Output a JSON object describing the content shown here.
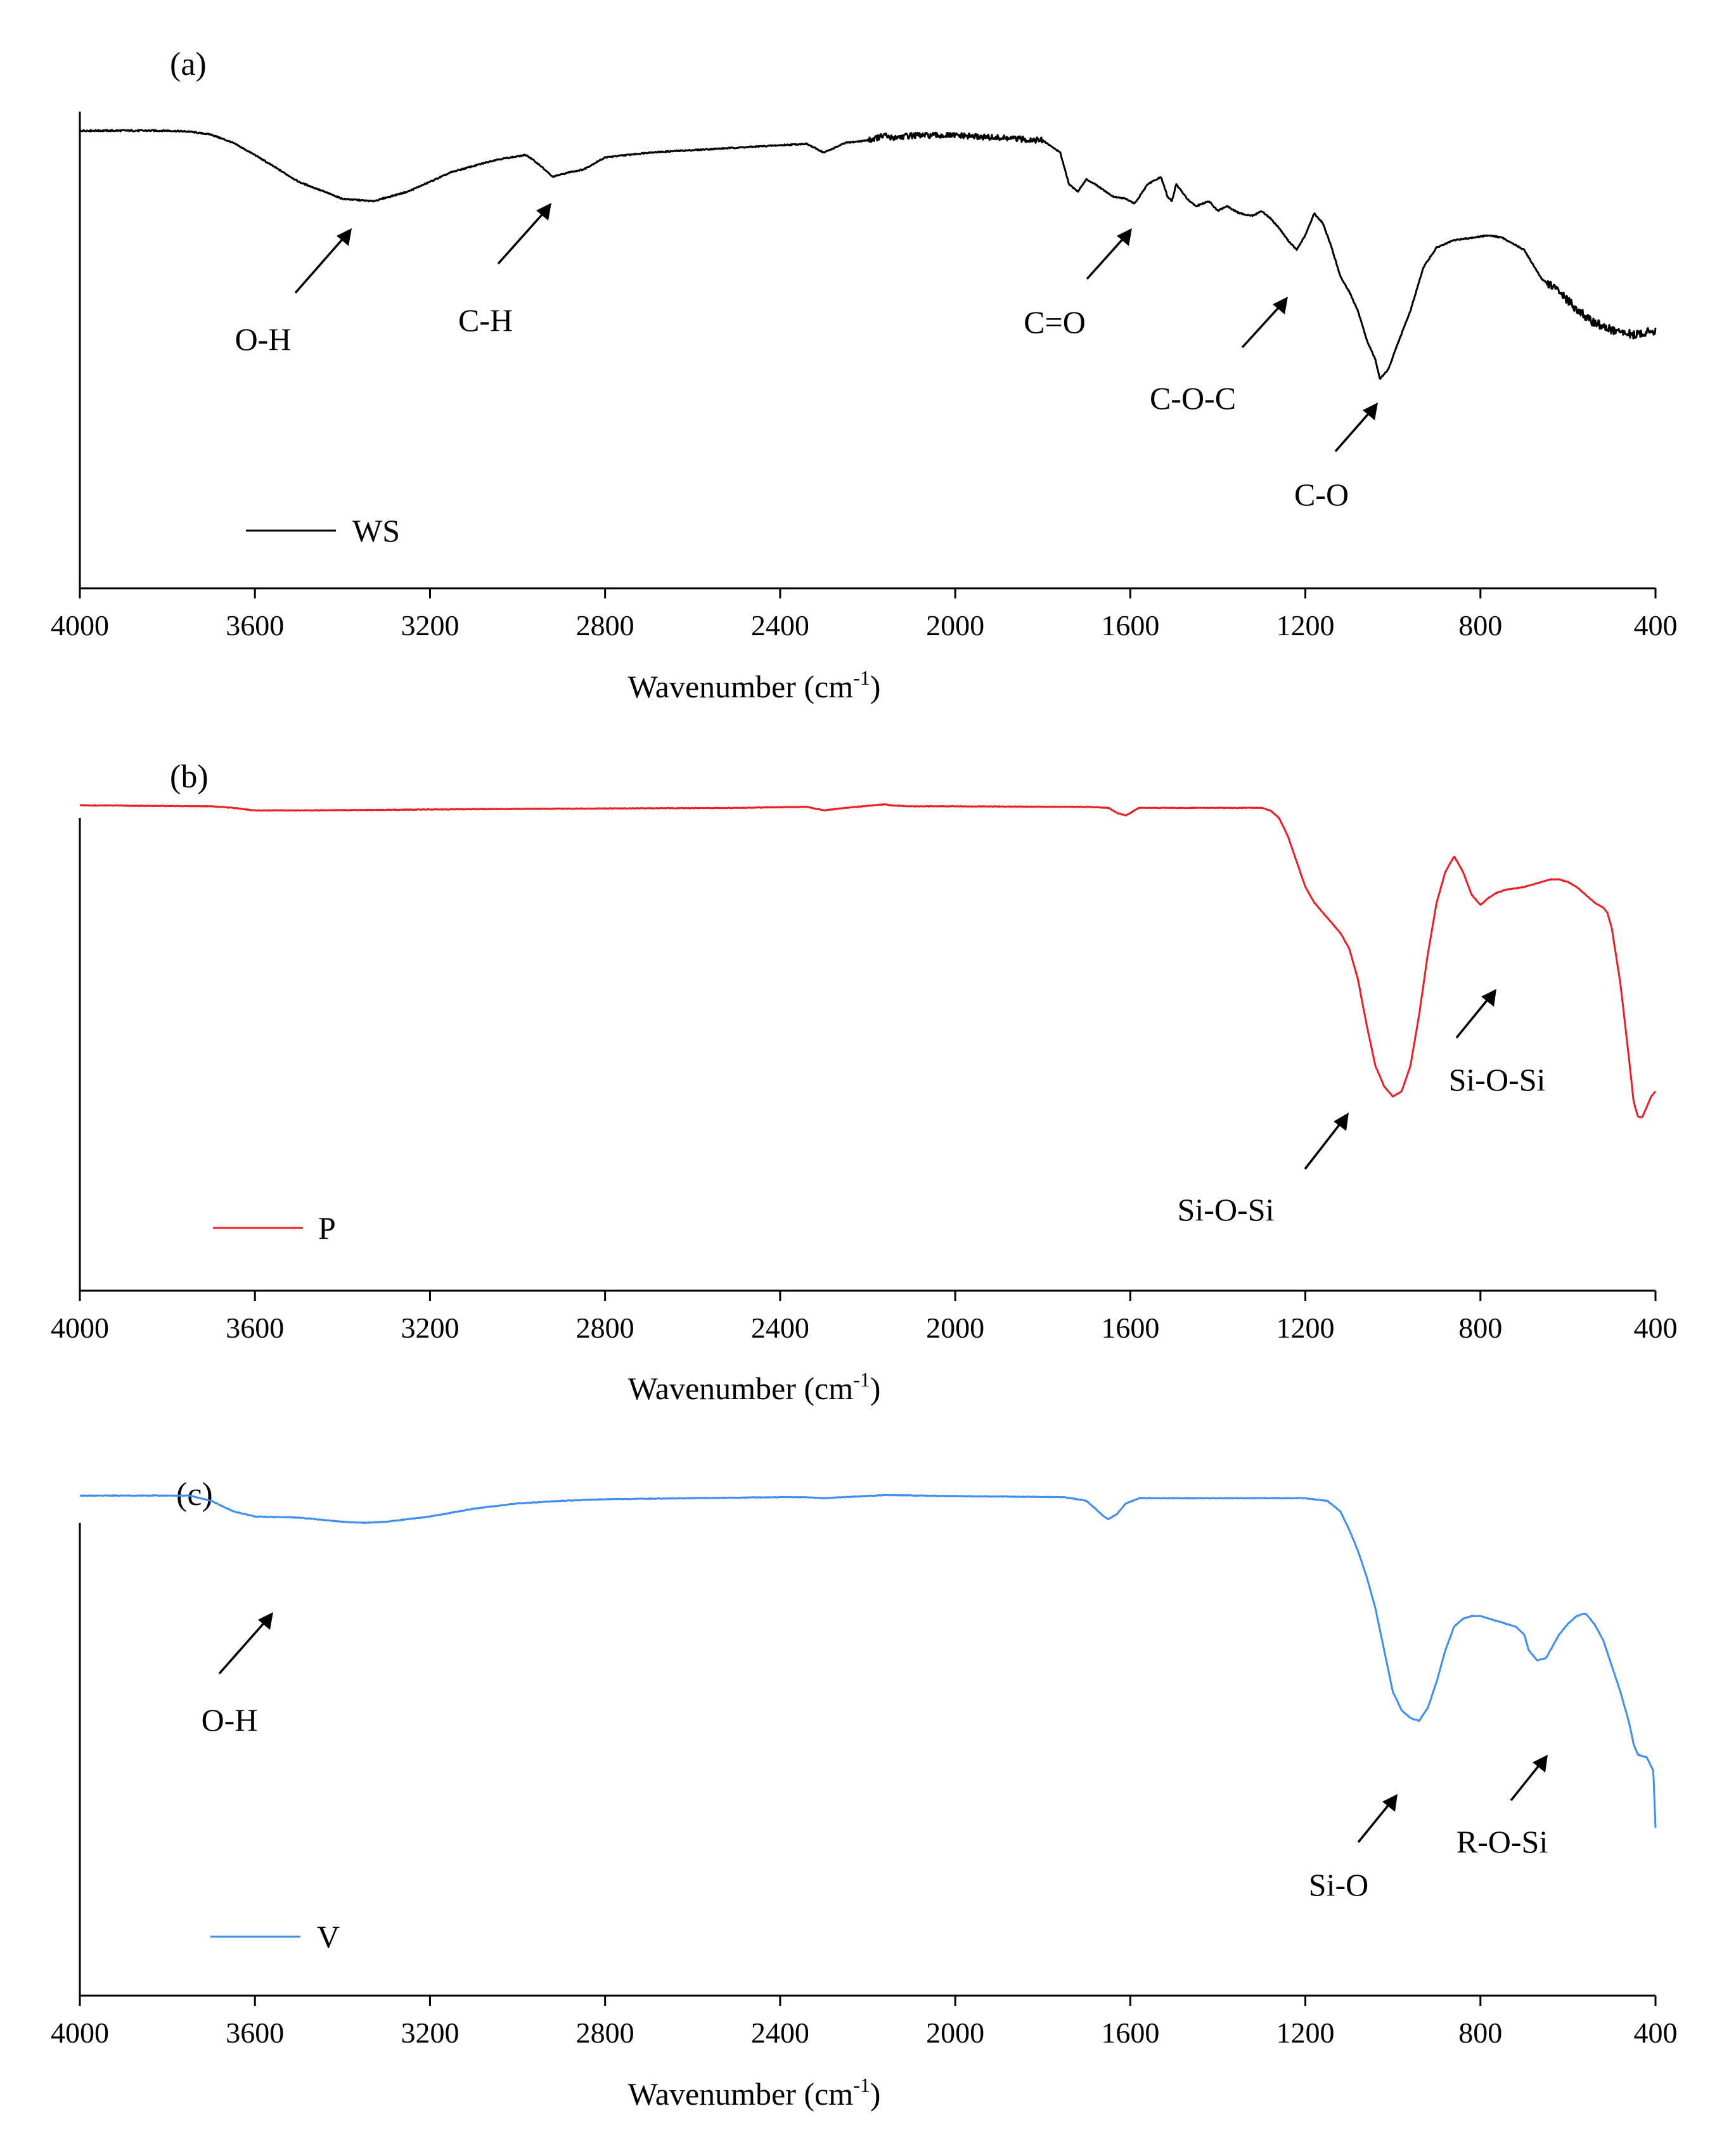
{
  "chart_data": [
    {
      "type": "line",
      "panel_label": "(a)",
      "xlabel": "Wavenumber (cm",
      "xlabel_sup": "-1",
      "xlabel_end": ")",
      "xlim": [
        4000,
        400
      ],
      "x_ticks": [
        "4000",
        "3600",
        "3200",
        "2800",
        "2400",
        "2000",
        "1600",
        "1200",
        "800",
        "400"
      ],
      "ylabel": "",
      "y_ticks": [],
      "legend": "bottom-left",
      "series": [
        {
          "name": "WS",
          "color": "#000000",
          "noise": true,
          "x": [
            4000,
            3900,
            3800,
            3750,
            3700,
            3650,
            3600,
            3500,
            3400,
            3330,
            3250,
            3150,
            3050,
            2980,
            2950,
            2920,
            2880,
            2850,
            2800,
            2700,
            2600,
            2500,
            2400,
            2340,
            2300,
            2250,
            2200,
            2160,
            2150,
            2100,
            2000,
            1900,
            1800,
            1760,
            1740,
            1720,
            1700,
            1680,
            1640,
            1610,
            1590,
            1560,
            1530,
            1515,
            1505,
            1495,
            1470,
            1450,
            1420,
            1400,
            1380,
            1350,
            1320,
            1300,
            1280,
            1260,
            1240,
            1220,
            1200,
            1180,
            1160,
            1140,
            1120,
            1100,
            1080,
            1060,
            1040,
            1030,
            1010,
            990,
            960,
            930,
            900,
            860,
            820,
            780,
            750,
            700,
            660,
            620,
            600,
            550,
            500,
            450,
            400
          ],
          "y": [
            94.0,
            94.0,
            94.0,
            93.8,
            93.2,
            91.5,
            89.0,
            83.5,
            80.0,
            79.5,
            81.5,
            85.5,
            88.0,
            89.0,
            87.0,
            84.5,
            85.5,
            86.0,
            88.5,
            89.5,
            90.0,
            90.5,
            91.0,
            91.3,
            89.5,
            91.5,
            92.0,
            93.0,
            92.5,
            93.0,
            93.0,
            92.5,
            92.0,
            89.5,
            83.0,
            81.5,
            84.0,
            83.0,
            80.5,
            80.0,
            79.0,
            83.0,
            84.5,
            80.5,
            79.5,
            83.0,
            80.0,
            78.5,
            79.5,
            77.5,
            78.5,
            77.0,
            76.5,
            77.5,
            76.0,
            74.0,
            71.5,
            69.5,
            72.5,
            77.0,
            75.0,
            70.0,
            64.0,
            61.0,
            57.0,
            51.0,
            47.0,
            43.0,
            45.0,
            50.0,
            57.0,
            66.0,
            70.0,
            71.5,
            72.0,
            72.5,
            72.0,
            69.5,
            63.5,
            61.0,
            59.0,
            55.0,
            53.0,
            52.0,
            53.0
          ]
        }
      ],
      "annotations": [
        {
          "label": "O-H",
          "x_wavenumber": 3400
        },
        {
          "label": "C-H",
          "x_wavenumber": 2920
        },
        {
          "label": "C=O",
          "x_wavenumber": 1610
        },
        {
          "label": "C-O-C",
          "x_wavenumber": 1230
        },
        {
          "label": "C-O",
          "x_wavenumber": 1030
        }
      ]
    },
    {
      "type": "line",
      "panel_label": "(b)",
      "xlabel": "Wavenumber (cm",
      "xlabel_sup": "-1",
      "xlabel_end": ")",
      "xlim": [
        4000,
        400
      ],
      "x_ticks": [
        "4000",
        "3600",
        "3200",
        "2800",
        "2400",
        "2000",
        "1600",
        "1200",
        "800",
        "400"
      ],
      "ylabel": "",
      "y_ticks": [],
      "legend": "bottom-left",
      "series": [
        {
          "name": "P",
          "color": "#ee1c24",
          "noise": false,
          "x": [
            4000,
            3700,
            3650,
            3600,
            3550,
            3500,
            3000,
            2500,
            2340,
            2300,
            2250,
            2160,
            2150,
            2100,
            2000,
            1700,
            1650,
            1630,
            1610,
            1580,
            1300,
            1280,
            1260,
            1240,
            1220,
            1200,
            1180,
            1160,
            1140,
            1120,
            1100,
            1080,
            1060,
            1040,
            1020,
            1000,
            980,
            960,
            940,
            920,
            900,
            880,
            860,
            840,
            820,
            800,
            780,
            760,
            740,
            700,
            660,
            640,
            620,
            600,
            580,
            560,
            540,
            520,
            510,
            500,
            480,
            460,
            450,
            440,
            430,
            420,
            410,
            400
          ],
          "y": [
            95.0,
            94.8,
            94.5,
            94.0,
            94.0,
            94.0,
            94.3,
            94.5,
            94.7,
            94.0,
            94.5,
            95.2,
            95.0,
            94.8,
            94.8,
            94.7,
            94.5,
            93.5,
            93.0,
            94.5,
            94.5,
            94.0,
            92.5,
            89.0,
            84.0,
            79.0,
            76.0,
            74.0,
            72.0,
            70.0,
            67.0,
            61.0,
            52.0,
            44.0,
            40.0,
            38.0,
            39.0,
            44.0,
            54.0,
            66.0,
            76.0,
            82.0,
            85.0,
            82.0,
            77.5,
            75.5,
            77.0,
            78.0,
            78.5,
            79.0,
            80.0,
            80.5,
            80.5,
            80.0,
            79.0,
            77.5,
            76.0,
            75.0,
            74.0,
            71.0,
            60.0,
            45.0,
            37.0,
            34.0,
            34.0,
            36.0,
            38.0,
            39.0
          ]
        }
      ],
      "annotations": [
        {
          "label": "Si-O-Si",
          "x_wavenumber": 1110
        },
        {
          "label": "Si-O-Si",
          "x_wavenumber": 790
        }
      ]
    },
    {
      "type": "line",
      "panel_label": "(c)",
      "xlabel": "Wavenumber (cm",
      "xlabel_sup": "-1",
      "xlabel_end": ")",
      "xlim": [
        4000,
        400
      ],
      "x_ticks": [
        "4000",
        "3600",
        "3200",
        "2800",
        "2400",
        "2000",
        "1600",
        "1200",
        "800",
        "400"
      ],
      "ylabel": "",
      "y_ticks": [],
      "legend": "bottom-left",
      "series": [
        {
          "name": "V",
          "color": "#3d8ef0",
          "noise": false,
          "x": [
            4000,
            3750,
            3700,
            3650,
            3600,
            3500,
            3400,
            3350,
            3300,
            3200,
            3100,
            3000,
            2900,
            2800,
            2600,
            2400,
            2340,
            2300,
            2160,
            2000,
            1750,
            1700,
            1680,
            1660,
            1650,
            1630,
            1610,
            1580,
            1500,
            1200,
            1150,
            1120,
            1100,
            1080,
            1060,
            1040,
            1020,
            1000,
            980,
            960,
            940,
            920,
            900,
            880,
            860,
            840,
            820,
            800,
            780,
            760,
            740,
            720,
            700,
            690,
            670,
            650,
            640,
            620,
            600,
            580,
            560,
            540,
            520,
            500,
            480,
            460,
            450,
            440,
            420,
            405,
            400
          ],
          "y": [
            95.5,
            95.5,
            94.5,
            92.5,
            91.5,
            91.3,
            90.5,
            90.3,
            90.5,
            91.5,
            93.0,
            94.0,
            94.5,
            94.8,
            95.0,
            95.2,
            95.2,
            95.0,
            95.6,
            95.4,
            95.2,
            94.5,
            93.0,
            91.5,
            91.0,
            92.0,
            94.0,
            95.0,
            95.0,
            95.0,
            94.5,
            92.5,
            89.0,
            85.0,
            80.0,
            74.0,
            66.0,
            58.0,
            54.5,
            53.0,
            52.5,
            55.0,
            60.0,
            66.0,
            70.5,
            72.0,
            72.5,
            72.5,
            72.0,
            71.5,
            71.0,
            70.5,
            69.0,
            66.0,
            64.0,
            64.5,
            66.0,
            69.0,
            71.0,
            72.5,
            73.0,
            71.0,
            68.0,
            63.0,
            58.0,
            52.0,
            48.0,
            46.0,
            45.5,
            43.0,
            32.0
          ]
        }
      ],
      "annotations": [
        {
          "label": "O-H",
          "x_wavenumber": 3560
        },
        {
          "label": "Si-O",
          "x_wavenumber": 990
        },
        {
          "label": "R-O-Si",
          "x_wavenumber": 670
        }
      ]
    }
  ]
}
